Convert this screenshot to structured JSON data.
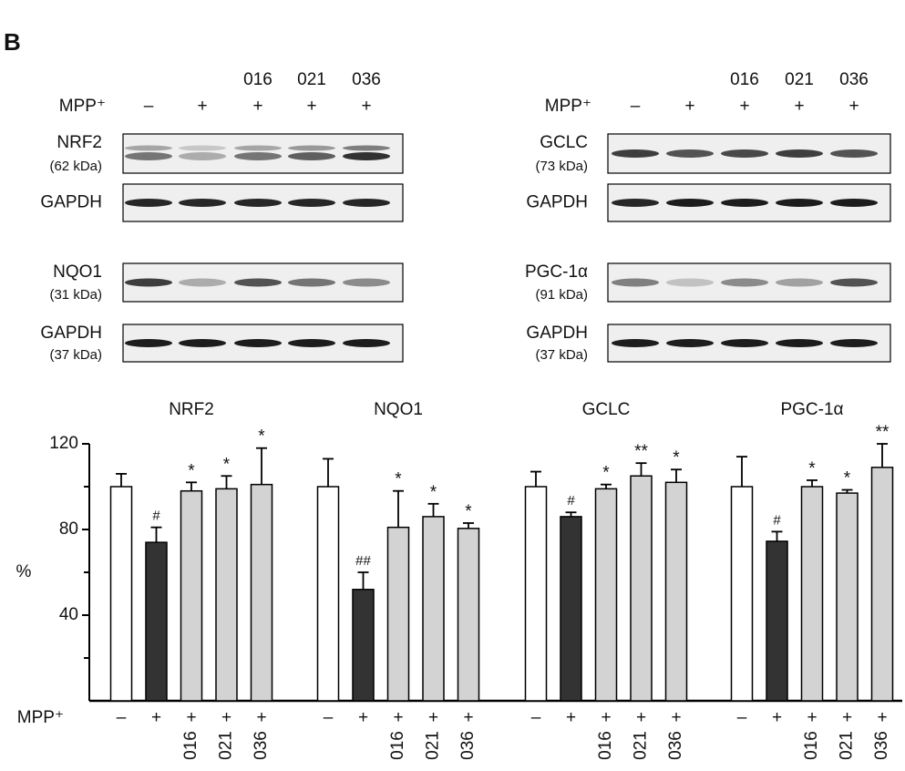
{
  "panel_label": "B",
  "blots": {
    "lanes": {
      "mpp_label": "MPP⁺",
      "mpp": [
        "–",
        "+",
        "+",
        "+",
        "+"
      ],
      "compounds": [
        null,
        null,
        "016",
        "021",
        "036"
      ]
    },
    "left": [
      {
        "label": "NRF2",
        "size": "(62 kDa)"
      },
      {
        "label": "GAPDH"
      },
      {
        "label": "NQO1",
        "size": "(31 kDa)"
      },
      {
        "label": "GAPDH",
        "size": "(37 kDa)"
      }
    ],
    "right": [
      {
        "label": "GCLC",
        "size": "(73 kDa)"
      },
      {
        "label": "GAPDH"
      },
      {
        "label": "PGC-1α",
        "size": "(91 kDa)"
      },
      {
        "label": "GAPDH",
        "size": "(37 kDa)"
      }
    ]
  },
  "chart_data": {
    "type": "bar",
    "ylabel": "%",
    "xlabel": "MPP⁺",
    "categories": [
      "–",
      "+",
      "+",
      "+",
      "+"
    ],
    "compounds": [
      null,
      null,
      "016",
      "021",
      "036"
    ],
    "colors": [
      "#ffffff",
      "#333333",
      "#d3d3d3",
      "#d3d3d3",
      "#d3d3d3"
    ],
    "ylim": [
      0,
      120
    ],
    "yticks": [
      40,
      80,
      120
    ],
    "yminorticks": [
      20,
      60,
      100
    ],
    "groups": [
      {
        "name": "NRF2",
        "values": [
          100,
          74,
          98,
          99,
          101
        ],
        "errors": [
          6,
          7,
          4,
          6,
          17
        ],
        "annotations": [
          null,
          "#",
          "*",
          "*",
          "*"
        ]
      },
      {
        "name": "NQO1",
        "values": [
          100,
          52,
          81,
          86,
          80.5
        ],
        "errors": [
          13,
          8,
          17,
          6,
          2.5
        ],
        "annotations": [
          null,
          "##",
          "*",
          "*",
          "*"
        ]
      },
      {
        "name": "GCLC",
        "values": [
          100,
          86,
          99,
          105,
          102
        ],
        "errors": [
          7,
          2,
          2,
          6,
          6
        ],
        "annotations": [
          null,
          "#",
          "*",
          "**",
          "*"
        ]
      },
      {
        "name": "PGC-1α",
        "values": [
          100,
          74.5,
          100,
          97,
          109
        ],
        "errors": [
          14,
          4.5,
          3,
          1.5,
          11
        ],
        "annotations": [
          null,
          "#",
          "*",
          "*",
          "**"
        ]
      }
    ]
  }
}
